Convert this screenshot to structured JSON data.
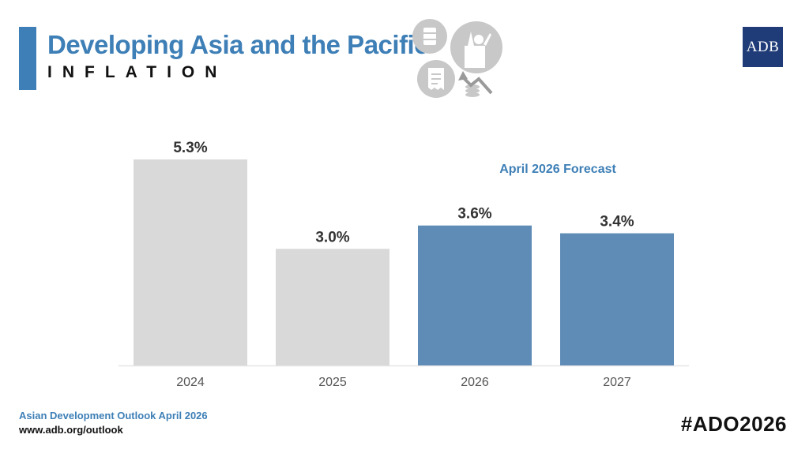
{
  "colors": {
    "accent": "#3d7fb6",
    "forecast_bar": "#5e8cb7",
    "actual_bar": "#d9d9d9",
    "icon_gray": "#c8c8c8",
    "logo_bg": "#1f3c78"
  },
  "header": {
    "title": "Developing Asia and the Pacific",
    "subtitle": "INFLATION",
    "logo": "ADB"
  },
  "icons": [
    "oil-barrel-icon",
    "grocery-bag-icon",
    "receipt-icon",
    "price-trend-icon"
  ],
  "forecast_label": "April 2026 Forecast",
  "chart_data": {
    "type": "bar",
    "title": "INFLATION",
    "categories": [
      "2024",
      "2025",
      "2026",
      "2027"
    ],
    "values": [
      5.3,
      3.0,
      3.6,
      3.4
    ],
    "value_labels": [
      "5.3%",
      "3.0%",
      "3.6%",
      "3.4%"
    ],
    "forecast": [
      false,
      false,
      true,
      true
    ],
    "ylim": [
      0,
      5.3
    ],
    "xlabel": "",
    "ylabel": ""
  },
  "footer": {
    "source": "Asian Development Outlook April 2026",
    "url": "www.adb.org/outlook",
    "hashtag": "#ADO2026"
  }
}
